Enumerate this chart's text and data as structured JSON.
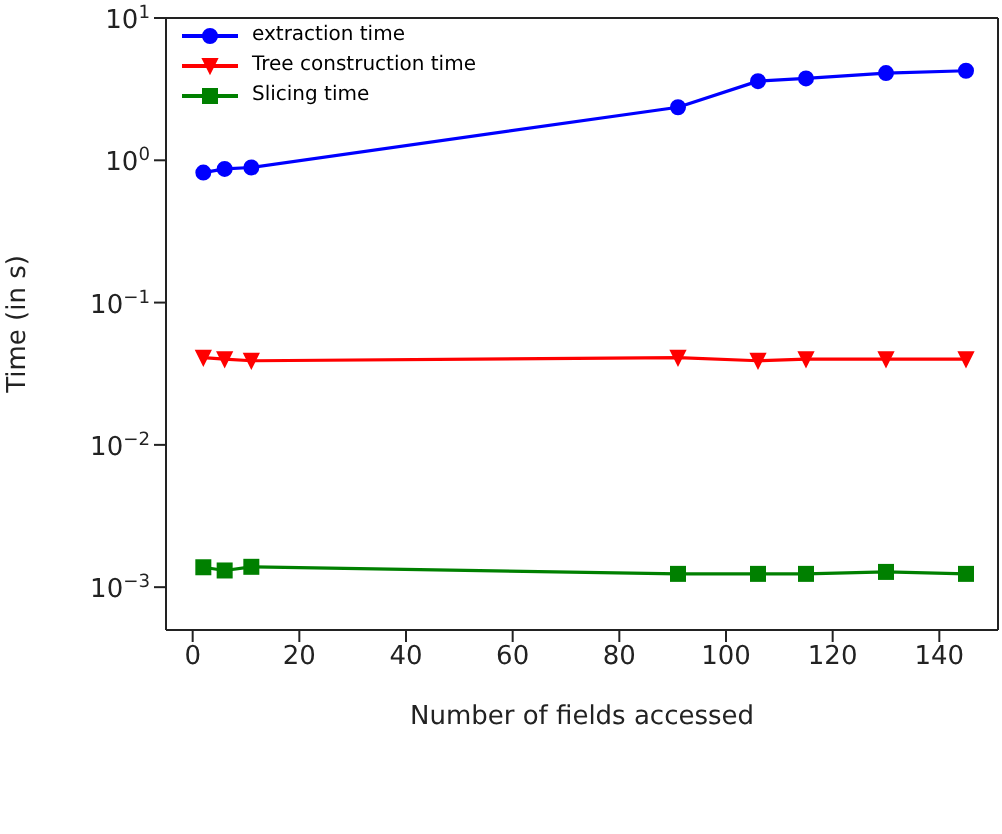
{
  "chart_data": {
    "type": "line",
    "xlabel": "Number of fields accessed",
    "ylabel": "Time (in s)",
    "x": [
      2,
      6,
      11,
      91,
      106,
      115,
      130,
      145
    ],
    "series": [
      {
        "name": "extraction time",
        "color": "#0000ff",
        "marker": "circle",
        "values": [
          0.82,
          0.87,
          0.89,
          2.36,
          3.6,
          3.76,
          4.1,
          4.26
        ]
      },
      {
        "name": "Tree construction time",
        "color": "#ff0000",
        "marker": "triangle",
        "values": [
          0.041,
          0.04,
          0.039,
          0.041,
          0.039,
          0.04,
          0.04,
          0.04
        ]
      },
      {
        "name": "Slicing time",
        "color": "#008000",
        "marker": "square",
        "values": [
          0.00138,
          0.00131,
          0.00139,
          0.00124,
          0.00124,
          0.00124,
          0.00128,
          0.00124
        ]
      }
    ],
    "xlim": [
      -5,
      151
    ],
    "xticks": [
      0,
      20,
      40,
      60,
      80,
      100,
      120,
      140
    ],
    "ylim": [
      0.0005,
      10
    ],
    "yticks": [
      {
        "value": 0.001,
        "label": "10$^{−3}$"
      },
      {
        "value": 0.01,
        "label": "10$^{−2}$"
      },
      {
        "value": 0.1,
        "label": "10$^{−1}$"
      },
      {
        "value": 1,
        "label": "10$^{0}$"
      },
      {
        "value": 10,
        "label": "10$^{1}$"
      }
    ],
    "log": "y",
    "legend": "top left",
    "line_style": "solid"
  }
}
